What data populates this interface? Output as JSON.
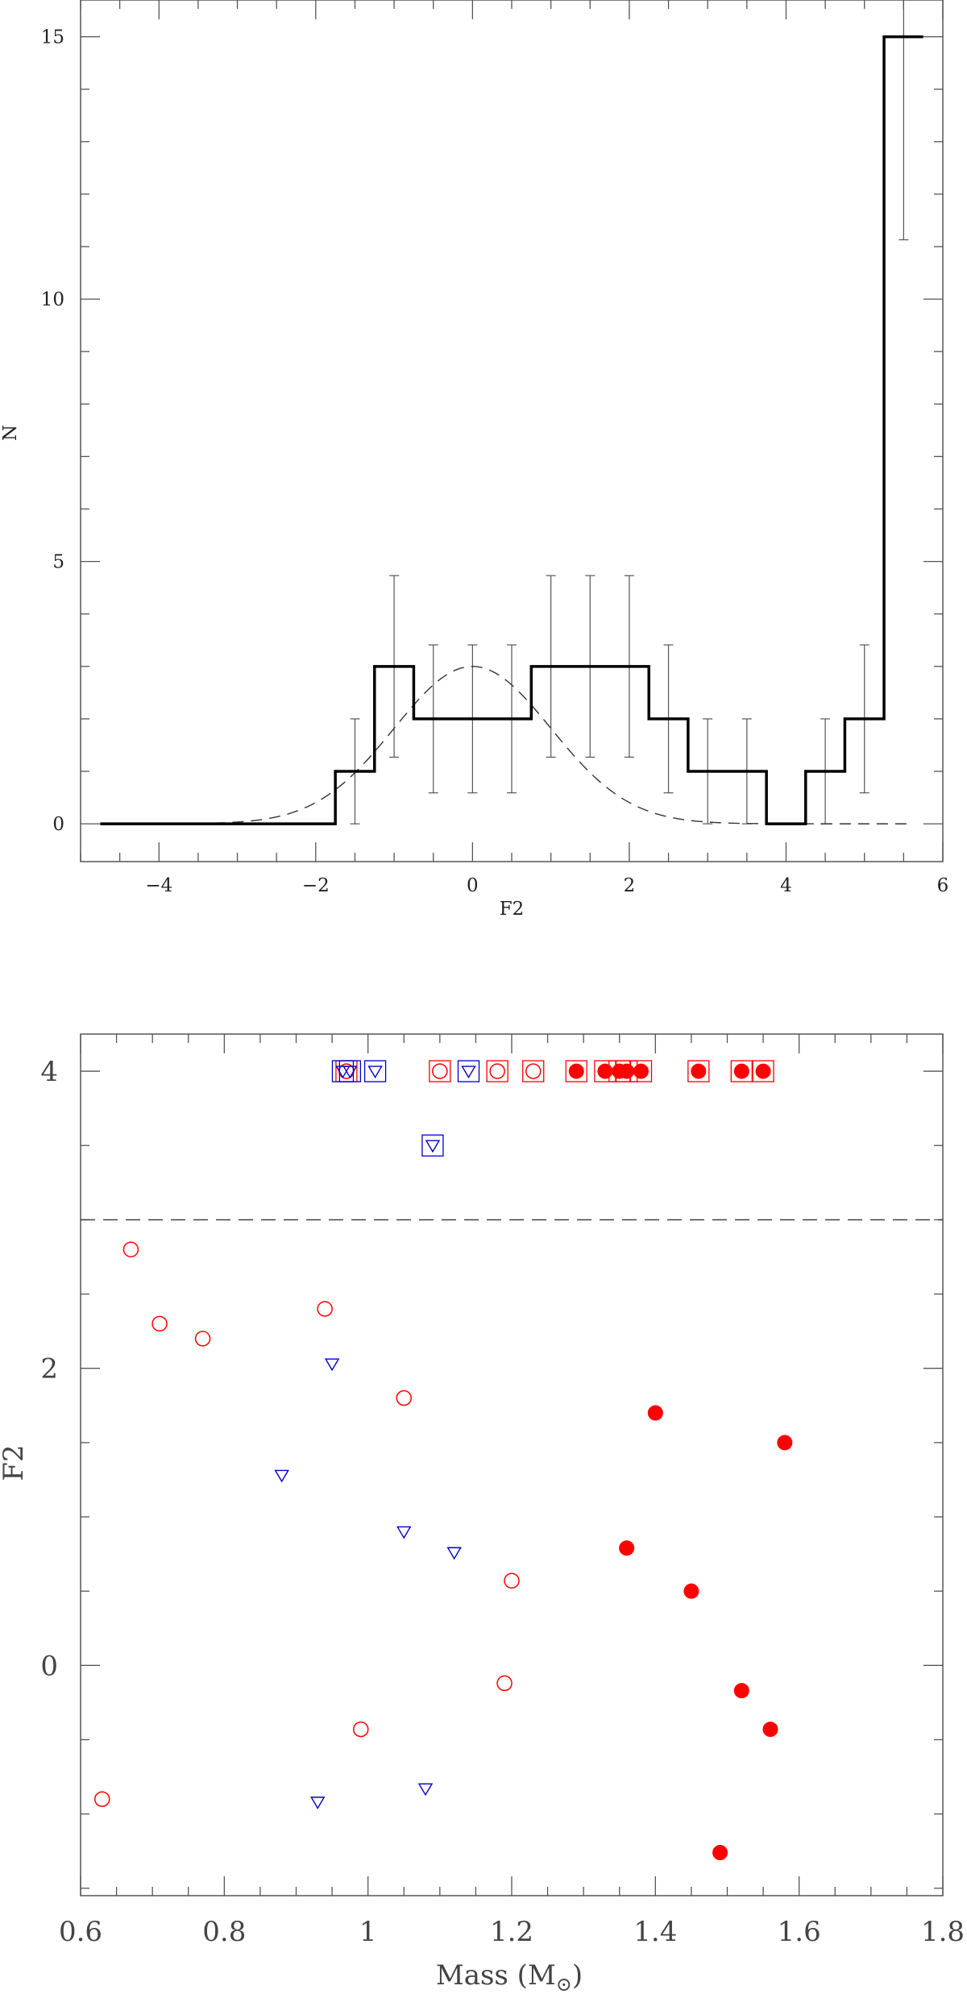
{
  "chart_data": [
    {
      "type": "histogram",
      "xlabel": "F2",
      "ylabel": "N",
      "xlim": [
        -5,
        6
      ],
      "ylim": [
        -0.72,
        15.7
      ],
      "xticks": [
        -4,
        -2,
        0,
        2,
        4,
        6
      ],
      "xtick_labels": [
        "−4",
        "−2",
        "0",
        "2",
        "4",
        "6"
      ],
      "yticks": [
        0,
        5,
        10,
        15
      ],
      "ytick_labels": [
        "0",
        "5",
        "10",
        "15"
      ],
      "bin_edges": [
        -4.75,
        -1.75,
        -1.25,
        -0.75,
        0.75,
        2.25,
        2.75,
        3.75,
        4.25,
        4.75,
        5.25,
        5.75
      ],
      "bin_counts": [
        0,
        1,
        3,
        2,
        3,
        2,
        1,
        0,
        1,
        2,
        15
      ],
      "error_bars": [
        {
          "x": -1.5,
          "low": 0,
          "high": 2
        },
        {
          "x": -1.0,
          "low": 1.27,
          "high": 4.73
        },
        {
          "x": -0.5,
          "low": 0.59,
          "high": 3.41
        },
        {
          "x": 0.0,
          "low": 0.59,
          "high": 3.41
        },
        {
          "x": 0.5,
          "low": 0.59,
          "high": 3.41
        },
        {
          "x": 1.0,
          "low": 1.27,
          "high": 4.73
        },
        {
          "x": 1.5,
          "low": 1.27,
          "high": 4.73
        },
        {
          "x": 2.0,
          "low": 1.27,
          "high": 4.73
        },
        {
          "x": 2.5,
          "low": 0.59,
          "high": 3.41
        },
        {
          "x": 3.0,
          "low": 0,
          "high": 2
        },
        {
          "x": 3.5,
          "low": 0,
          "high": 2
        },
        {
          "x": 4.5,
          "low": 0,
          "high": 2
        },
        {
          "x": 5.0,
          "low": 0.59,
          "high": 3.41
        },
        {
          "x": 5.5,
          "low": 11.13,
          "high": 15.7
        }
      ],
      "gaussian": {
        "mean": 0,
        "sigma": 1,
        "amplitude": 3,
        "x_range": [
          -3.3,
          5.6
        ],
        "style": "dashed"
      },
      "grid": false
    },
    {
      "type": "scatter",
      "xlabel": "Mass (M",
      "xlabel_sub": "⊙",
      "xlabel_close": ")",
      "ylabel": "F2",
      "xlim": [
        0.6,
        1.8
      ],
      "ylim": [
        -1.55,
        4.25
      ],
      "xticks": [
        0.6,
        0.8,
        1.0,
        1.2,
        1.4,
        1.6,
        1.8
      ],
      "xtick_labels": [
        "0.6",
        "0.8",
        "1",
        "1.2",
        "1.4",
        "1.6",
        "1.8"
      ],
      "yticks": [
        0,
        2,
        4
      ],
      "ytick_labels": [
        "0",
        "2",
        "4"
      ],
      "threshold_line": {
        "y": 3,
        "style": "dashed"
      },
      "colors": {
        "red": "#ff0000",
        "blue": "#0000cc",
        "axis": "#444444"
      },
      "series": [
        {
          "marker": "open-circle",
          "color": "red",
          "points": [
            {
              "x": 0.97,
              "y": 4,
              "boxed": true
            },
            {
              "x": 1.1,
              "y": 4,
              "boxed": true
            },
            {
              "x": 1.18,
              "y": 4,
              "boxed": true
            },
            {
              "x": 1.23,
              "y": 4,
              "boxed": true
            },
            {
              "x": 0.67,
              "y": 2.8
            },
            {
              "x": 0.71,
              "y": 2.3
            },
            {
              "x": 0.77,
              "y": 2.2
            },
            {
              "x": 0.94,
              "y": 2.4
            },
            {
              "x": 1.05,
              "y": 1.8
            },
            {
              "x": 1.2,
              "y": 0.57
            },
            {
              "x": 1.19,
              "y": -0.12
            },
            {
              "x": 0.99,
              "y": -0.43
            },
            {
              "x": 0.63,
              "y": -0.9
            }
          ]
        },
        {
          "marker": "filled-circle",
          "color": "red",
          "points": [
            {
              "x": 1.29,
              "y": 4,
              "boxed": true
            },
            {
              "x": 1.33,
              "y": 4,
              "boxed": true
            },
            {
              "x": 1.35,
              "y": 4,
              "boxed": true
            },
            {
              "x": 1.36,
              "y": 4,
              "boxed": true
            },
            {
              "x": 1.38,
              "y": 4,
              "boxed": true
            },
            {
              "x": 1.46,
              "y": 4,
              "boxed": true
            },
            {
              "x": 1.52,
              "y": 4,
              "boxed": true
            },
            {
              "x": 1.55,
              "y": 4,
              "boxed": true
            },
            {
              "x": 1.4,
              "y": 1.7
            },
            {
              "x": 1.58,
              "y": 1.5
            },
            {
              "x": 1.36,
              "y": 0.79
            },
            {
              "x": 1.45,
              "y": 0.5
            },
            {
              "x": 1.52,
              "y": -0.17
            },
            {
              "x": 1.56,
              "y": -0.43
            },
            {
              "x": 1.49,
              "y": -1.26
            }
          ]
        },
        {
          "marker": "open-triangle-down",
          "color": "blue",
          "points": [
            {
              "x": 0.965,
              "y": 4,
              "boxed": true
            },
            {
              "x": 0.975,
              "y": 4,
              "boxed": true
            },
            {
              "x": 1.01,
              "y": 4,
              "boxed": true
            },
            {
              "x": 1.14,
              "y": 4,
              "boxed": true
            },
            {
              "x": 1.09,
              "y": 3.5,
              "boxed": true
            },
            {
              "x": 0.95,
              "y": 2.03
            },
            {
              "x": 0.88,
              "y": 1.28
            },
            {
              "x": 1.05,
              "y": 0.9
            },
            {
              "x": 1.12,
              "y": 0.76
            },
            {
              "x": 0.93,
              "y": -0.92
            },
            {
              "x": 1.08,
              "y": -0.83
            }
          ]
        }
      ],
      "grid": false
    }
  ]
}
